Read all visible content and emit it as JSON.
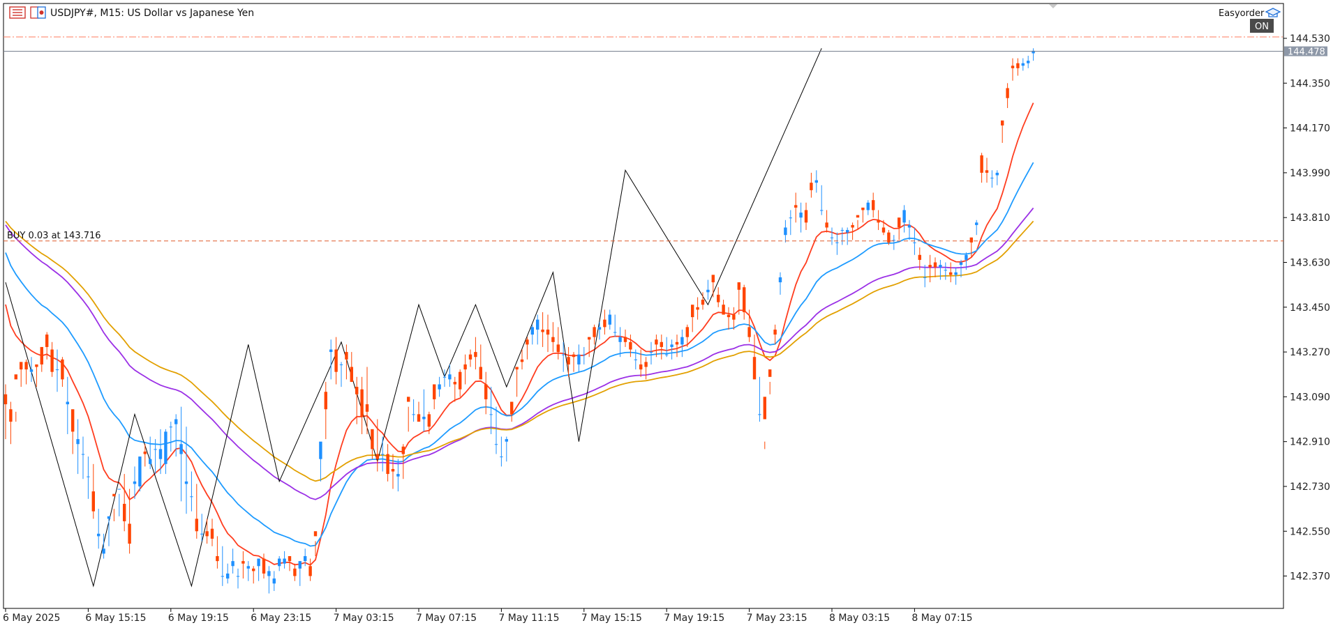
{
  "header": {
    "symbol_title": "USDJPY#, M15:  US Dollar vs Japanese Yen",
    "expert_name": "Easyorder",
    "autotrade_state": "ON"
  },
  "position_line": {
    "label": "BUY 0.03 at 143.716",
    "price": 143.716,
    "color": "#e05a2a"
  },
  "current_price": {
    "label": "144.478",
    "value": 144.478
  },
  "ask_line_price": 144.53,
  "colors": {
    "bull": "#1e90ff",
    "bear": "#ff4500",
    "ema_fast": "#ff3d1f",
    "ema_mid": "#1e9bff",
    "ema_slow": "#9b30e6",
    "ema_slowest": "#e2a000",
    "zigzag": "#000000",
    "axis": "#000000"
  },
  "icons": [
    "chart-list-icon",
    "symbol-flag-icon",
    "expert-hat-icon"
  ],
  "chart_data": {
    "type": "candlestick",
    "title": "USDJPY#, M15:  US Dollar vs Japanese Yen",
    "xlabel": "",
    "ylabel": "",
    "y_ticks": [
      144.53,
      144.35,
      144.17,
      143.99,
      143.81,
      143.63,
      143.45,
      143.27,
      143.09,
      142.91,
      142.73,
      142.55,
      142.37
    ],
    "ylim": [
      142.24,
      144.6
    ],
    "x_ticks": [
      {
        "label": "6 May 2025",
        "index": 0
      },
      {
        "label": "6 May 15:15",
        "index": 16
      },
      {
        "label": "6 May 19:15",
        "index": 32
      },
      {
        "label": "6 May 23:15",
        "index": 48
      },
      {
        "label": "7 May 03:15",
        "index": 64
      },
      {
        "label": "7 May 07:15",
        "index": 80
      },
      {
        "label": "7 May 11:15",
        "index": 96
      },
      {
        "label": "7 May 15:15",
        "index": 112
      },
      {
        "label": "7 May 19:15",
        "index": 128
      },
      {
        "label": "7 May 23:15",
        "index": 144
      },
      {
        "label": "8 May 03:15",
        "index": 160
      },
      {
        "label": "8 May 07:15",
        "index": 176
      }
    ],
    "candles": [
      [
        143.14,
        143.1,
        143.06,
        142.92
      ],
      [
        143.07,
        143.04,
        142.99,
        142.9
      ],
      [
        143.03,
        143.18,
        143.16,
        142.99
      ],
      [
        143.22,
        143.23,
        143.2,
        143.13
      ],
      [
        143.24,
        143.23,
        143.2,
        143.14
      ],
      [
        143.25,
        143.19,
        143.2,
        143.15
      ],
      [
        143.22,
        143.22,
        143.21,
        143.13
      ],
      [
        143.28,
        143.29,
        143.22,
        143.19
      ],
      [
        143.35,
        143.34,
        143.29,
        143.24
      ],
      [
        143.31,
        143.28,
        143.19,
        143.17
      ],
      [
        143.28,
        143.2,
        143.2,
        143.11
      ],
      [
        143.25,
        143.24,
        143.16,
        143.13
      ],
      [
        143.17,
        143.06,
        143.07,
        142.94
      ],
      [
        142.98,
        143.04,
        142.95,
        142.86
      ],
      [
        143.0,
        142.9,
        142.92,
        142.78
      ],
      [
        142.93,
        142.86,
        142.86,
        142.76
      ],
      [
        142.85,
        142.77,
        142.77,
        142.68
      ],
      [
        142.82,
        142.71,
        142.63,
        142.6
      ],
      [
        142.64,
        142.53,
        142.54,
        142.48
      ],
      [
        142.54,
        142.46,
        142.48,
        142.44
      ],
      [
        142.6,
        142.6,
        142.61,
        142.49
      ],
      [
        142.64,
        142.7,
        142.69,
        142.59
      ],
      [
        142.7,
        142.72,
        142.72,
        142.61
      ],
      [
        142.78,
        142.66,
        142.59,
        142.55
      ],
      [
        142.72,
        142.58,
        142.5,
        142.46
      ],
      [
        142.81,
        142.74,
        142.75,
        142.68
      ],
      [
        142.85,
        142.73,
        142.85,
        142.71
      ],
      [
        142.9,
        142.87,
        142.86,
        142.81
      ],
      [
        142.93,
        142.82,
        142.84,
        142.8
      ],
      [
        142.92,
        142.88,
        142.88,
        142.78
      ],
      [
        142.96,
        142.84,
        142.88,
        142.78
      ],
      [
        142.96,
        142.82,
        142.95,
        142.78
      ],
      [
        142.99,
        142.97,
        142.97,
        142.87
      ],
      [
        143.02,
        142.98,
        143.0,
        142.85
      ],
      [
        143.05,
        142.86,
        142.9,
        142.67
      ],
      [
        142.97,
        142.74,
        142.75,
        142.62
      ],
      [
        142.79,
        142.69,
        142.69,
        142.63
      ],
      [
        142.74,
        142.6,
        142.55,
        142.52
      ],
      [
        142.62,
        142.54,
        142.54,
        142.51
      ],
      [
        142.6,
        142.55,
        142.53,
        142.5
      ],
      [
        142.6,
        142.56,
        142.52,
        142.49
      ],
      [
        142.53,
        142.45,
        142.43,
        142.4
      ],
      [
        142.49,
        142.37,
        142.37,
        142.33
      ],
      [
        142.42,
        142.36,
        142.38,
        142.34
      ],
      [
        142.48,
        142.41,
        142.43,
        142.38
      ],
      [
        142.4,
        142.37,
        142.37,
        142.32
      ],
      [
        142.47,
        142.43,
        142.42,
        142.36
      ],
      [
        142.43,
        142.4,
        142.41,
        142.35
      ],
      [
        142.41,
        142.4,
        142.39,
        142.34
      ],
      [
        142.44,
        142.41,
        142.44,
        142.35
      ],
      [
        142.46,
        142.44,
        142.38,
        142.36
      ],
      [
        142.41,
        142.37,
        142.39,
        142.3
      ],
      [
        142.39,
        142.34,
        142.36,
        142.31
      ],
      [
        142.45,
        142.41,
        142.44,
        142.39
      ],
      [
        142.47,
        142.42,
        142.44,
        142.4
      ],
      [
        142.45,
        142.45,
        142.43,
        142.39
      ],
      [
        142.42,
        142.4,
        142.37,
        142.35
      ],
      [
        142.43,
        142.4,
        142.43,
        142.33
      ],
      [
        142.48,
        142.43,
        142.45,
        142.41
      ],
      [
        142.44,
        142.41,
        142.37,
        142.35
      ],
      [
        142.51,
        142.55,
        142.53,
        142.45
      ],
      [
        142.88,
        142.84,
        142.91,
        142.75
      ],
      [
        143.15,
        143.11,
        143.04,
        142.92
      ],
      [
        143.32,
        143.27,
        143.28,
        143.16
      ],
      [
        143.33,
        143.28,
        143.19,
        143.14
      ],
      [
        143.23,
        143.22,
        143.22,
        143.13
      ],
      [
        143.3,
        143.27,
        143.24,
        143.16
      ],
      [
        143.27,
        143.21,
        143.15,
        143.15
      ],
      [
        143.17,
        143.13,
        143.1,
        142.98
      ],
      [
        143.17,
        143.12,
        143.01,
        142.94
      ],
      [
        143.21,
        143.06,
        143.03,
        142.94
      ],
      [
        142.94,
        142.96,
        142.88,
        142.84
      ],
      [
        143.0,
        142.86,
        142.84,
        142.79
      ],
      [
        142.93,
        142.86,
        142.86,
        142.79
      ],
      [
        142.9,
        142.86,
        142.78,
        142.75
      ],
      [
        142.86,
        142.8,
        142.79,
        142.72
      ],
      [
        142.84,
        142.77,
        142.78,
        142.71
      ],
      [
        142.9,
        142.89,
        142.86,
        142.76
      ],
      [
        143.05,
        143.09,
        143.07,
        142.95
      ],
      [
        143.08,
        143.02,
        143.02,
        142.99
      ],
      [
        143.07,
        143.02,
        142.99,
        142.99
      ],
      [
        143.12,
        143.0,
        143.01,
        142.95
      ],
      [
        143.03,
        143.02,
        142.97,
        142.94
      ],
      [
        143.14,
        143.14,
        143.08,
        143.04
      ],
      [
        143.17,
        143.12,
        143.14,
        143.09
      ],
      [
        143.2,
        143.17,
        143.17,
        143.13
      ],
      [
        143.22,
        143.16,
        143.18,
        143.13
      ],
      [
        143.17,
        143.15,
        143.14,
        143.07
      ],
      [
        143.2,
        143.19,
        143.12,
        143.09
      ],
      [
        143.26,
        143.22,
        143.2,
        143.14
      ],
      [
        143.28,
        143.26,
        143.24,
        143.21
      ],
      [
        143.33,
        143.27,
        143.25,
        143.2
      ],
      [
        143.3,
        143.21,
        143.16,
        143.16
      ],
      [
        143.19,
        143.14,
        143.08,
        143.02
      ],
      [
        143.13,
        143.02,
        143.02,
        142.94
      ],
      [
        143.05,
        142.9,
        142.9,
        142.86
      ],
      [
        142.93,
        142.85,
        142.85,
        142.81
      ],
      [
        142.93,
        142.91,
        142.92,
        142.83
      ],
      [
        143.02,
        143.07,
        143.02,
        142.99
      ],
      [
        143.21,
        143.21,
        143.2,
        143.09
      ],
      [
        143.28,
        143.24,
        143.23,
        143.2
      ],
      [
        143.33,
        143.32,
        143.3,
        143.24
      ],
      [
        143.38,
        143.34,
        143.37,
        143.3
      ],
      [
        143.42,
        143.36,
        143.4,
        143.3
      ],
      [
        143.43,
        143.36,
        143.35,
        143.29
      ],
      [
        143.42,
        143.36,
        143.34,
        143.27
      ],
      [
        143.39,
        143.33,
        143.31,
        143.27
      ],
      [
        143.37,
        143.3,
        143.27,
        143.24
      ],
      [
        143.31,
        143.26,
        143.26,
        143.19
      ],
      [
        143.29,
        143.25,
        143.22,
        143.17
      ],
      [
        143.27,
        143.26,
        143.25,
        143.19
      ],
      [
        143.3,
        143.22,
        143.26,
        143.19
      ],
      [
        143.29,
        143.26,
        143.26,
        143.22
      ],
      [
        143.33,
        143.33,
        143.32,
        143.25
      ],
      [
        143.38,
        143.37,
        143.33,
        143.3
      ],
      [
        143.39,
        143.36,
        143.37,
        143.32
      ],
      [
        143.44,
        143.4,
        143.37,
        143.34
      ],
      [
        143.44,
        143.38,
        143.42,
        143.36
      ],
      [
        143.42,
        143.35,
        143.35,
        143.33
      ],
      [
        143.37,
        143.31,
        143.33,
        143.25
      ],
      [
        143.36,
        143.33,
        143.31,
        143.29
      ],
      [
        143.34,
        143.31,
        143.28,
        143.25
      ],
      [
        143.28,
        143.24,
        143.24,
        143.2
      ],
      [
        143.28,
        143.22,
        143.2,
        143.17
      ],
      [
        143.25,
        143.23,
        143.21,
        143.16
      ],
      [
        143.31,
        143.27,
        143.27,
        143.22
      ],
      [
        143.34,
        143.32,
        143.3,
        143.25
      ],
      [
        143.34,
        143.31,
        143.29,
        143.24
      ],
      [
        143.33,
        143.26,
        143.26,
        143.25
      ],
      [
        143.32,
        143.29,
        143.3,
        143.24
      ],
      [
        143.34,
        143.31,
        143.3,
        143.25
      ],
      [
        143.36,
        143.3,
        143.33,
        143.25
      ],
      [
        143.38,
        143.37,
        143.33,
        143.29
      ],
      [
        143.45,
        143.46,
        143.41,
        143.35
      ],
      [
        143.49,
        143.45,
        143.44,
        143.4
      ],
      [
        143.51,
        143.48,
        143.46,
        143.44
      ],
      [
        143.56,
        143.51,
        143.52,
        143.48
      ],
      [
        143.57,
        143.58,
        143.55,
        143.49
      ],
      [
        143.53,
        143.5,
        143.47,
        143.45
      ],
      [
        143.48,
        143.46,
        143.42,
        143.42
      ],
      [
        143.45,
        143.42,
        143.41,
        143.36
      ],
      [
        143.45,
        143.42,
        143.4,
        143.36
      ],
      [
        143.54,
        143.55,
        143.52,
        143.42
      ],
      [
        143.54,
        143.53,
        143.43,
        143.4
      ],
      [
        143.44,
        143.37,
        143.33,
        143.31
      ],
      [
        143.34,
        143.25,
        143.16,
        143.17
      ],
      [
        143.17,
        143.02,
        143.02,
        142.99
      ],
      [
        142.91,
        143.09,
        143.0,
        142.88
      ],
      [
        143.15,
        143.2,
        143.17,
        143.1
      ],
      [
        143.38,
        143.36,
        143.34,
        143.3
      ],
      [
        143.59,
        143.55,
        143.57,
        143.5
      ],
      [
        143.8,
        143.74,
        143.77,
        143.71
      ],
      [
        143.84,
        143.81,
        143.81,
        143.74
      ],
      [
        143.91,
        143.86,
        143.85,
        143.79
      ],
      [
        143.87,
        143.81,
        143.83,
        143.75
      ],
      [
        143.87,
        143.84,
        143.79,
        143.76
      ],
      [
        143.99,
        143.95,
        143.92,
        143.89
      ],
      [
        144.0,
        143.95,
        143.96,
        143.91
      ],
      [
        143.94,
        143.84,
        143.84,
        143.82
      ],
      [
        143.84,
        143.79,
        143.77,
        143.75
      ],
      [
        143.77,
        143.73,
        143.73,
        143.7
      ],
      [
        143.75,
        143.71,
        143.71,
        143.66
      ],
      [
        143.77,
        143.76,
        143.76,
        143.7
      ],
      [
        143.77,
        143.75,
        143.76,
        143.7
      ],
      [
        143.79,
        143.78,
        143.77,
        143.72
      ],
      [
        143.8,
        143.82,
        143.81,
        143.76
      ],
      [
        143.84,
        143.85,
        143.84,
        143.79
      ],
      [
        143.88,
        143.84,
        143.87,
        143.82
      ],
      [
        143.91,
        143.88,
        143.84,
        143.81
      ],
      [
        143.84,
        143.8,
        143.79,
        143.76
      ],
      [
        143.8,
        143.77,
        143.75,
        143.74
      ],
      [
        143.76,
        143.75,
        143.71,
        143.7
      ],
      [
        143.74,
        143.72,
        143.72,
        143.68
      ],
      [
        143.79,
        143.81,
        143.77,
        143.72
      ],
      [
        143.86,
        143.79,
        143.84,
        143.75
      ],
      [
        143.8,
        143.77,
        143.78,
        143.72
      ],
      [
        143.77,
        143.71,
        143.71,
        143.66
      ],
      [
        143.69,
        143.66,
        143.64,
        143.6
      ],
      [
        143.62,
        143.57,
        143.57,
        143.53
      ],
      [
        143.66,
        143.62,
        143.61,
        143.55
      ],
      [
        143.65,
        143.63,
        143.61,
        143.57
      ],
      [
        143.64,
        143.61,
        143.62,
        143.56
      ],
      [
        143.63,
        143.6,
        143.6,
        143.56
      ],
      [
        143.63,
        143.59,
        143.58,
        143.55
      ],
      [
        143.61,
        143.58,
        143.59,
        143.54
      ],
      [
        143.64,
        143.62,
        143.63,
        143.57
      ],
      [
        143.67,
        143.64,
        143.66,
        143.6
      ],
      [
        143.73,
        143.73,
        143.71,
        143.65
      ],
      [
        143.8,
        143.78,
        143.79,
        143.74
      ],
      [
        144.07,
        144.06,
        143.99,
        143.95
      ],
      [
        144.05,
        144.0,
        143.99,
        143.95
      ],
      [
        144.0,
        143.97,
        143.97,
        143.93
      ],
      [
        144.0,
        143.98,
        143.99,
        143.94
      ],
      [
        144.19,
        144.2,
        144.18,
        144.11
      ],
      [
        144.35,
        144.33,
        144.29,
        144.25
      ],
      [
        144.45,
        144.42,
        144.41,
        144.36
      ],
      [
        144.45,
        144.43,
        144.41,
        144.38
      ],
      [
        144.45,
        144.42,
        144.43,
        144.4
      ],
      [
        144.46,
        144.43,
        144.44,
        144.41
      ],
      [
        144.49,
        144.47,
        144.48,
        144.44
      ]
    ],
    "candle_fields": [
      "high",
      "open",
      "close",
      "low"
    ],
    "series": [
      {
        "name": "",
        "period": 10,
        "color": "#ff3d1f"
      },
      {
        "name": "",
        "period": 25,
        "color": "#1e9bff"
      },
      {
        "name": "",
        "period": 50,
        "color": "#9b30e6"
      },
      {
        "name": "",
        "period": 60,
        "color": "#e2a000"
      }
    ],
    "zigzag": [
      {
        "index": 0,
        "price": 143.55
      },
      {
        "index": 17,
        "price": 142.33
      },
      {
        "index": 25,
        "price": 143.02
      },
      {
        "index": 36,
        "price": 142.33
      },
      {
        "index": 47,
        "price": 143.3
      },
      {
        "index": 53,
        "price": 142.75
      },
      {
        "index": 65,
        "price": 143.31
      },
      {
        "index": 72,
        "price": 142.83
      },
      {
        "index": 80,
        "price": 143.46
      },
      {
        "index": 85,
        "price": 143.17
      },
      {
        "index": 91,
        "price": 143.46
      },
      {
        "index": 97,
        "price": 143.13
      },
      {
        "index": 106,
        "price": 143.59
      },
      {
        "index": 111,
        "price": 142.91
      },
      {
        "index": 120,
        "price": 144.0
      },
      {
        "index": 136,
        "price": 143.46
      },
      {
        "index": 158,
        "price": 144.49
      }
    ],
    "grid": false,
    "legend": "none"
  }
}
